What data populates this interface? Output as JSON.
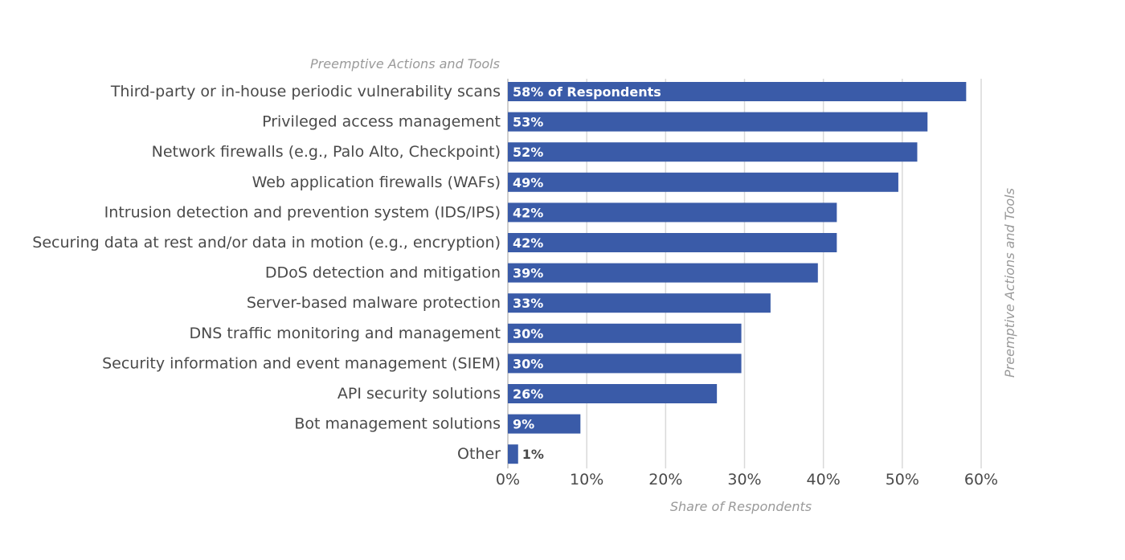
{
  "colors": {
    "bar": "#3a5ba8",
    "grid": "#d9d9d9",
    "text": "#4a4a4a",
    "axis_title": "#9a9a9a"
  },
  "chart_data": {
    "type": "bar",
    "orientation": "horizontal",
    "title": "",
    "xlabel": "Share of Respondents",
    "ylabel": "Preemptive Actions and Tools",
    "y2label": "Preemptive Actions and Tools",
    "xlim": [
      0,
      60
    ],
    "grid": true,
    "legend": "none",
    "ticks": [
      "0%",
      "10%",
      "20%",
      "30%",
      "40%",
      "50%",
      "60%"
    ],
    "tick_values": [
      0,
      10,
      20,
      30,
      40,
      50,
      60
    ],
    "categories": [
      "Third-party or in-house periodic vulnerability scans",
      "Privileged access management",
      "Network firewalls (e.g., Palo Alto, Checkpoint)",
      "Web application firewalls (WAFs)",
      "Intrusion detection and prevention system (IDS/IPS)",
      "Securing data at rest and/or data in motion (e.g., encryption)",
      "DDoS detection and mitigation",
      "Server-based malware protection",
      "DNS traffic monitoring and management",
      "Security information and event management (SIEM)",
      "API security solutions",
      "Bot management solutions",
      "Other"
    ],
    "values": [
      58.1,
      53.2,
      51.9,
      49.5,
      41.7,
      41.7,
      39.3,
      33.3,
      29.6,
      29.6,
      26.5,
      9.2,
      1.3
    ],
    "value_labels": [
      "58% of Respondents",
      "53%",
      "52%",
      "49%",
      "42%",
      "42%",
      "39%",
      "33%",
      "30%",
      "30%",
      "26%",
      "9%",
      "1%"
    ]
  }
}
